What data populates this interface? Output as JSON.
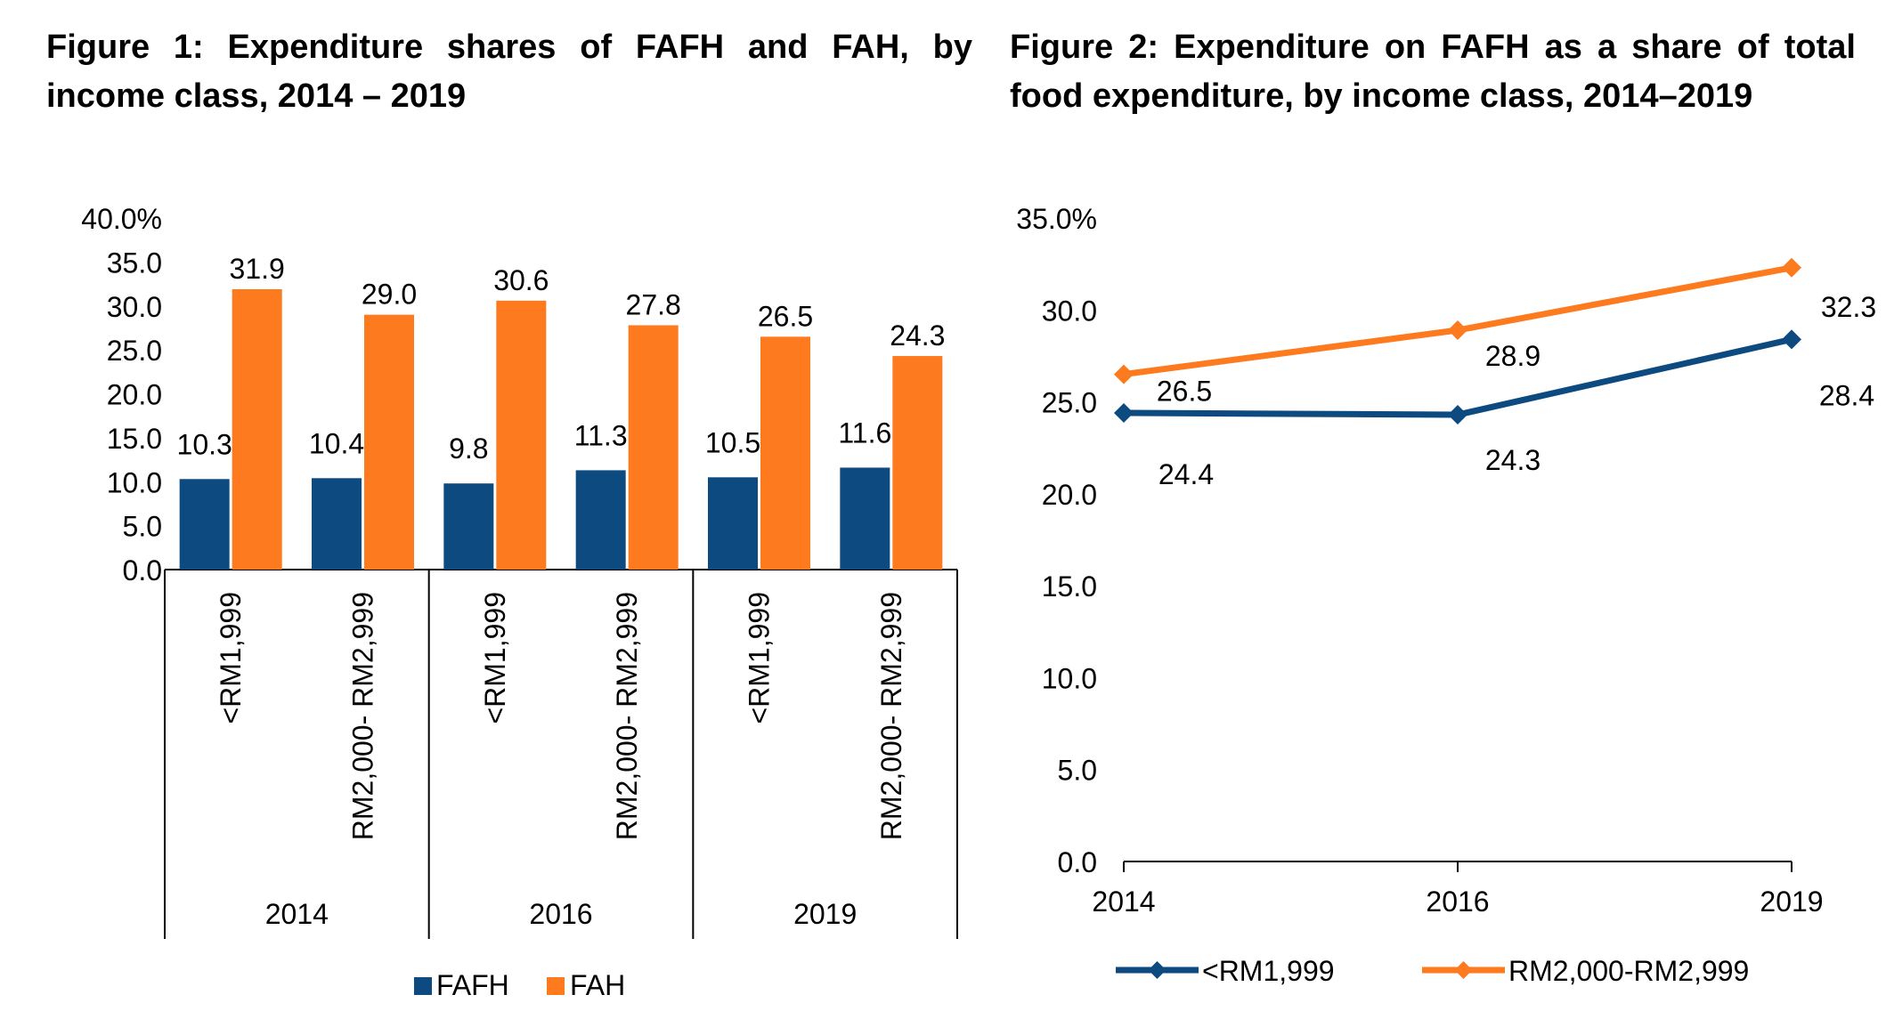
{
  "figure1": {
    "title": "Figure 1: Expenditure shares of FAFH and FAH, by income class, 2014 – 2019"
  },
  "figure2": {
    "title": "Figure 2: Expenditure on FAFH as a share of total food expenditure, by income class, 2014–2019"
  },
  "colors": {
    "fafh": "#0c4a80",
    "fah": "#fd7a1e",
    "axis": "#000000"
  },
  "chart_data": [
    {
      "type": "bar",
      "title": "Figure 1: Expenditure shares of FAFH and FAH, by income class, 2014 – 2019",
      "groups": [
        {
          "year": "2014",
          "classes": [
            "<RM1,999",
            "RM2,000- RM2,999"
          ]
        },
        {
          "year": "2016",
          "classes": [
            "<RM1,999",
            "RM2,000- RM2,999"
          ]
        },
        {
          "year": "2019",
          "classes": [
            "<RM1,999",
            "RM2,000- RM2,999"
          ]
        }
      ],
      "series": [
        {
          "name": "FAFH",
          "values": [
            10.3,
            10.4,
            9.8,
            11.3,
            10.5,
            11.6
          ]
        },
        {
          "name": "FAH",
          "values": [
            31.9,
            29.0,
            30.6,
            27.8,
            26.5,
            24.3
          ]
        }
      ],
      "value_labels": {
        "FAFH": [
          "10.3",
          "10.4",
          "9.8",
          "11.3",
          "10.5",
          "11.6"
        ],
        "FAH": [
          "31.9",
          "29.0",
          "30.6",
          "27.8",
          "26.5",
          "24.3"
        ]
      },
      "ylim": [
        0,
        40
      ],
      "yticks": [
        0,
        5,
        10,
        15,
        20,
        25,
        30,
        35,
        40
      ],
      "ytick_labels": [
        "0.0",
        "5.0",
        "10.0",
        "15.0",
        "20.0",
        "25.0",
        "30.0",
        "35.0",
        "40.0%"
      ],
      "legend": [
        "FAFH",
        "FAH"
      ],
      "legend_position": "bottom",
      "grid": false
    },
    {
      "type": "line",
      "title": "Figure 2: Expenditure on FAFH as a share of total food expenditure, by income class, 2014–2019",
      "x": [
        "2014",
        "2016",
        "2019"
      ],
      "series": [
        {
          "name": "<RM1,999",
          "values": [
            24.4,
            24.3,
            28.4
          ],
          "labels": [
            "24.4",
            "24.3",
            "28.4"
          ]
        },
        {
          "name": "RM2,000-RM2,999",
          "values": [
            26.5,
            28.9,
            32.3
          ],
          "labels": [
            "26.5",
            "28.9",
            "32.3"
          ]
        }
      ],
      "ylim": [
        0,
        35
      ],
      "yticks": [
        0,
        5,
        10,
        15,
        20,
        25,
        30,
        35
      ],
      "ytick_labels": [
        "0.0",
        "5.0",
        "10.0",
        "15.0",
        "20.0",
        "25.0",
        "30.0",
        "35.0%"
      ],
      "legend_position": "bottom",
      "grid": false
    }
  ]
}
